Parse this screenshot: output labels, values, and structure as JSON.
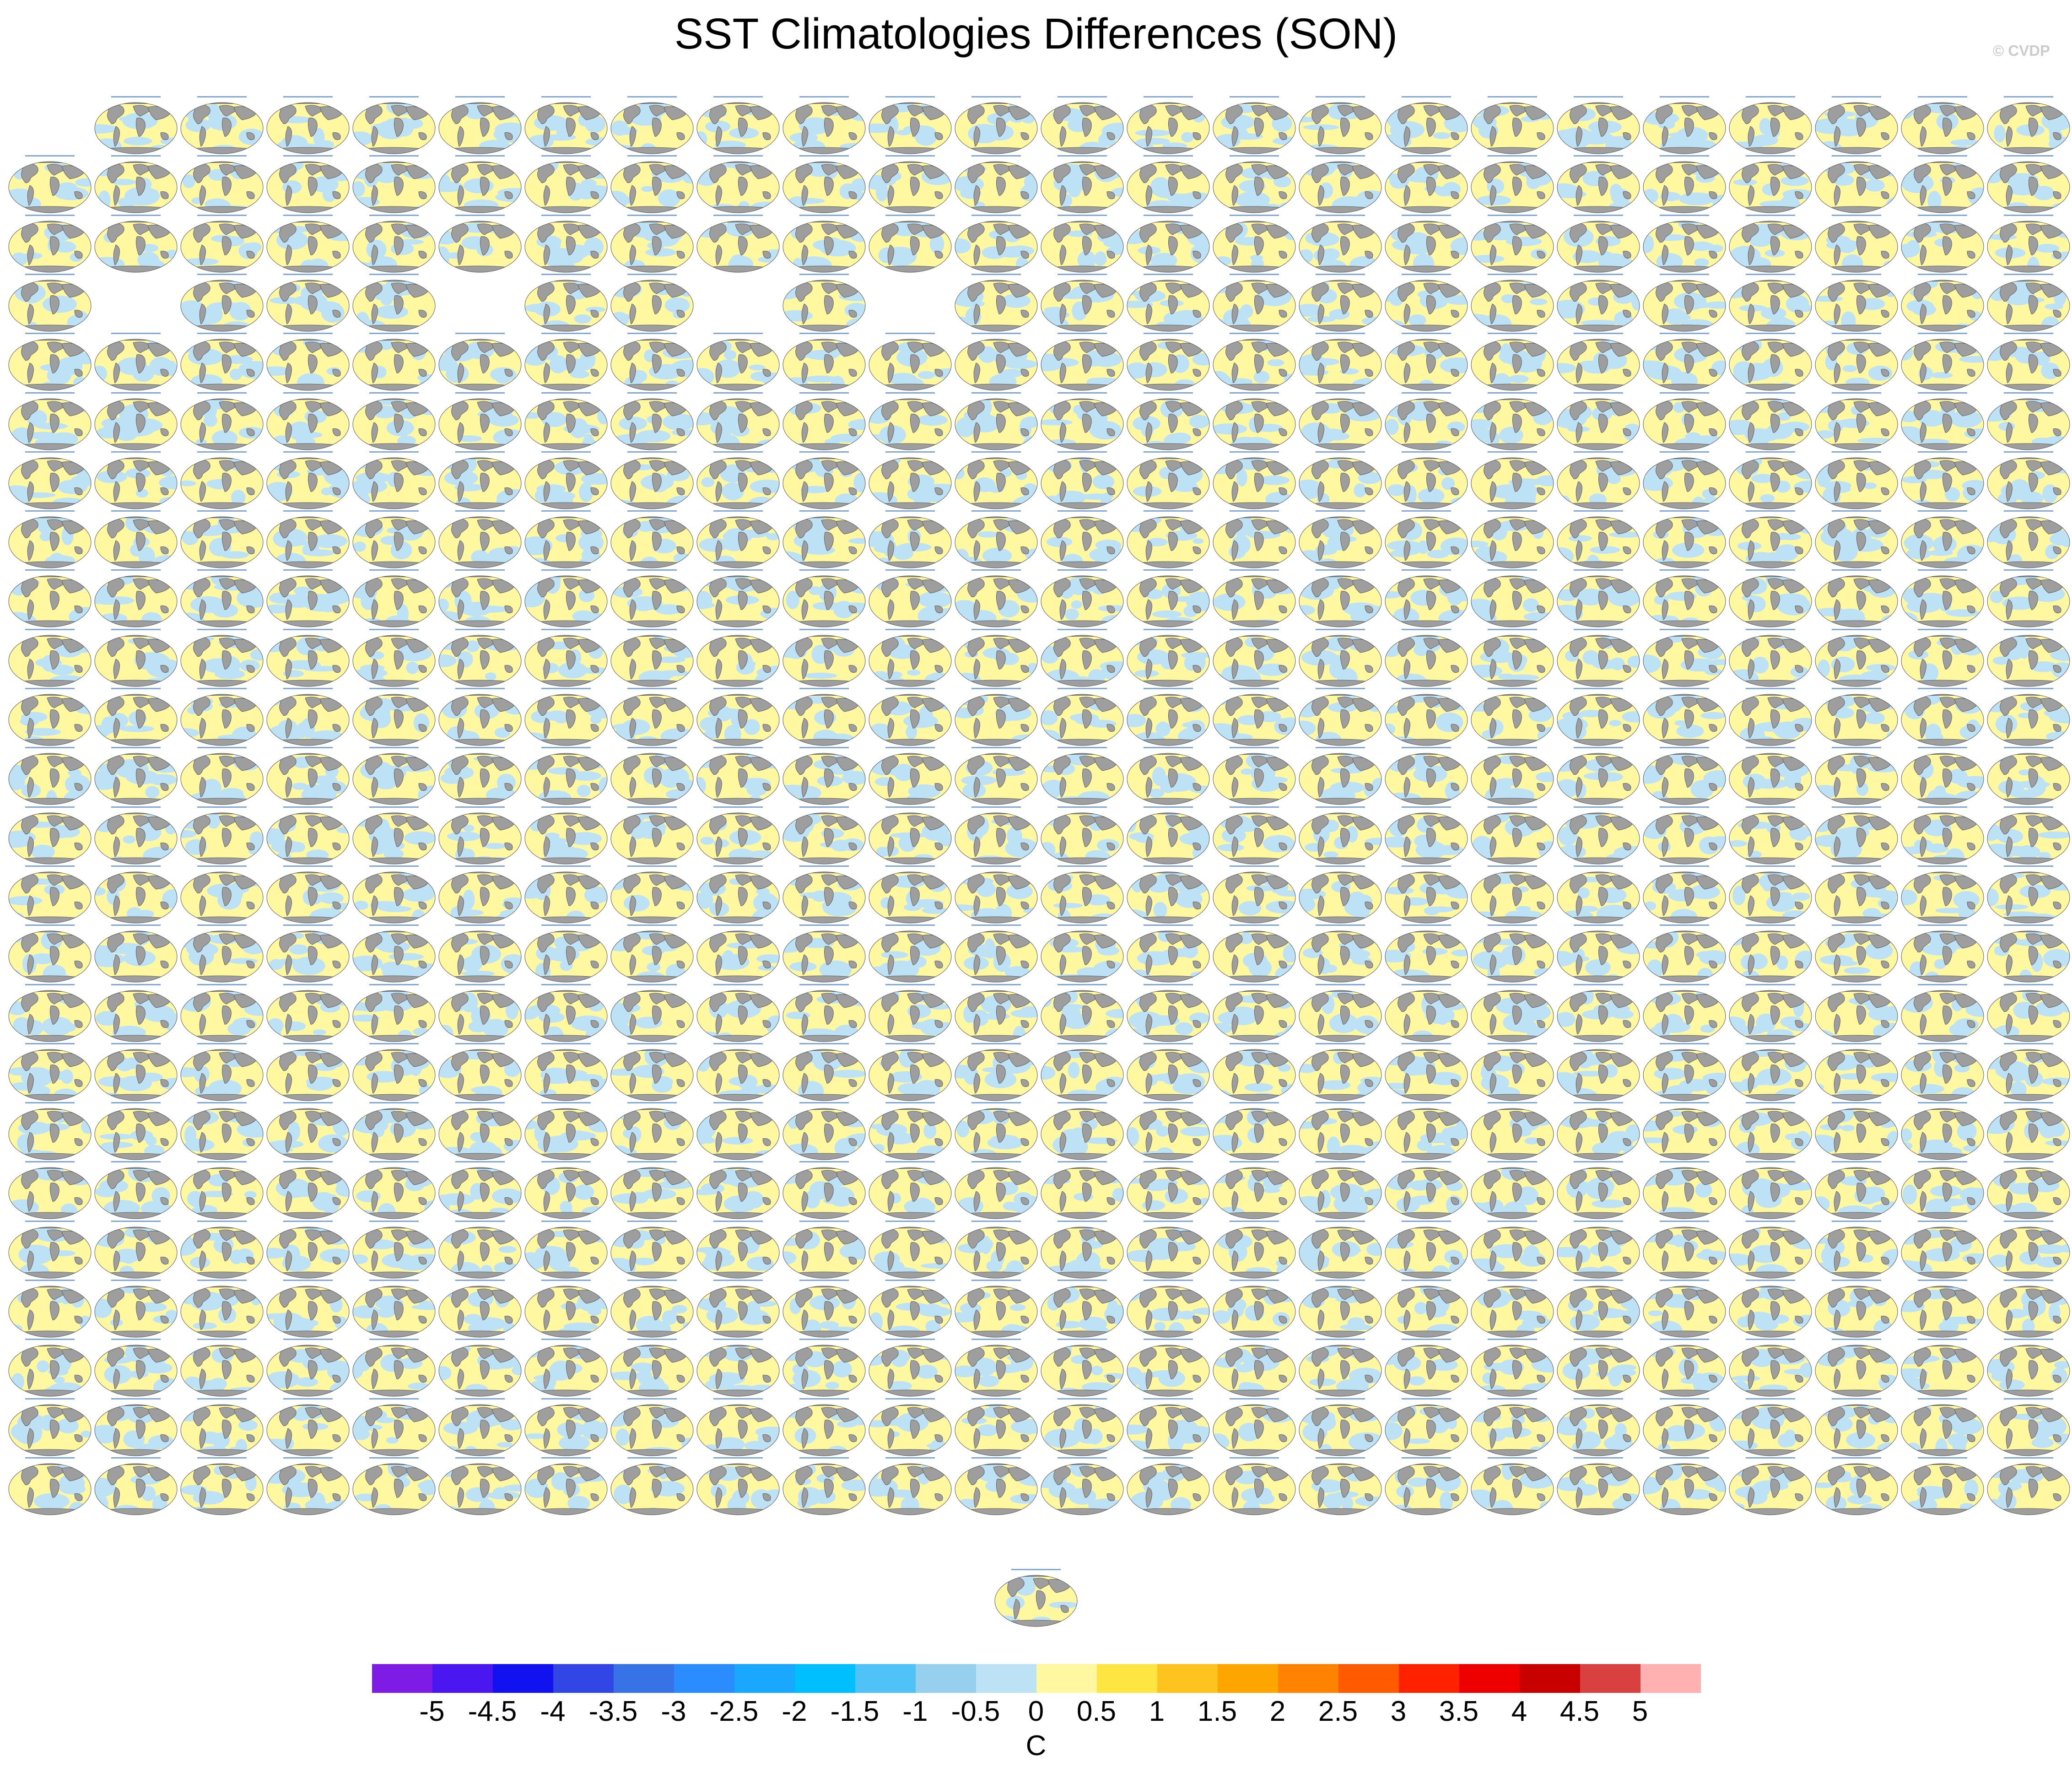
{
  "figure": {
    "title": "SST Climatologies Differences (SON)",
    "credit": "© CVDP"
  },
  "panel_layout": {
    "total_rows": 24,
    "columns_per_row": 24,
    "row_one_missing_columns": [
      0
    ],
    "row_four_missing_columns": [
      1,
      5,
      8,
      10
    ],
    "extra_centered_panel": true
  },
  "panel_colors": {
    "land": "#9e9e9e",
    "positive_anomaly": "#fff8a0",
    "negative_anomaly": "#bde2f5",
    "coast": "#4a4a4a",
    "title_text": "#80a7d8"
  },
  "colorbar": {
    "colors": [
      "#7e1ce6",
      "#4b17f0",
      "#1212f0",
      "#3246e6",
      "#3773e6",
      "#2a8cff",
      "#1aa8ff",
      "#00bfff",
      "#4fc3f7",
      "#96d0ee",
      "#bde2f5",
      "#fff8a0",
      "#ffe541",
      "#ffc31f",
      "#ffa500",
      "#ff8200",
      "#ff5a00",
      "#ff2200",
      "#ee0000",
      "#c80000",
      "#d94040",
      "#ffb0b0"
    ],
    "labels": [
      "-5",
      "-4.5",
      "-4",
      "-3.5",
      "-3",
      "-2.5",
      "-2",
      "-1.5",
      "-1",
      "-0.5",
      "0",
      "0.5",
      "1",
      "1.5",
      "2",
      "2.5",
      "3",
      "3.5",
      "4",
      "4.5",
      "5"
    ],
    "units": "C"
  }
}
